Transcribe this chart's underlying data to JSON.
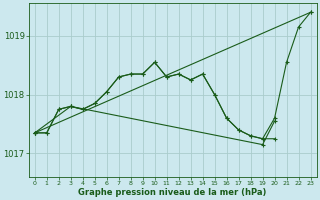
{
  "background_color": "#cce8ee",
  "grid_color": "#aacccc",
  "line_color": "#1a5c1a",
  "title": "Graphe pression niveau de la mer (hPa)",
  "yticks": [
    1017,
    1018,
    1019
  ],
  "xlim": [
    -0.5,
    23.5
  ],
  "ylim": [
    1016.6,
    1019.55
  ],
  "series": [
    {
      "x": [
        0,
        1,
        2,
        3,
        4,
        5,
        6,
        7,
        8,
        9,
        10,
        11,
        12,
        13,
        14,
        15,
        16,
        17,
        18,
        19,
        20,
        21,
        22,
        23
      ],
      "y": [
        1017.35,
        1017.35,
        1017.75,
        1017.8,
        1017.75,
        1017.85,
        1018.05,
        1018.3,
        1018.35,
        1018.35,
        1018.55,
        1018.3,
        1018.35,
        1018.25,
        1018.35,
        1018.0,
        1017.6,
        1017.4,
        1017.3,
        1017.25,
        1017.6,
        1018.55,
        1019.15,
        1019.4
      ]
    },
    {
      "x": [
        0,
        1,
        2,
        3,
        4,
        5,
        6,
        7,
        8,
        9,
        10,
        11,
        12,
        13,
        14,
        15,
        16,
        17,
        18,
        19,
        20
      ],
      "y": [
        1017.35,
        1017.35,
        1017.75,
        1017.8,
        1017.75,
        1017.85,
        1018.05,
        1018.3,
        1018.35,
        1018.35,
        1018.55,
        1018.3,
        1018.35,
        1018.25,
        1018.35,
        1018.0,
        1017.6,
        1017.4,
        1017.3,
        1017.25,
        1017.25
      ]
    },
    {
      "x": [
        0,
        3,
        19,
        20
      ],
      "y": [
        1017.35,
        1017.8,
        1017.15,
        1017.55
      ]
    },
    {
      "x": [
        0,
        23
      ],
      "y": [
        1017.35,
        1019.4
      ]
    }
  ]
}
